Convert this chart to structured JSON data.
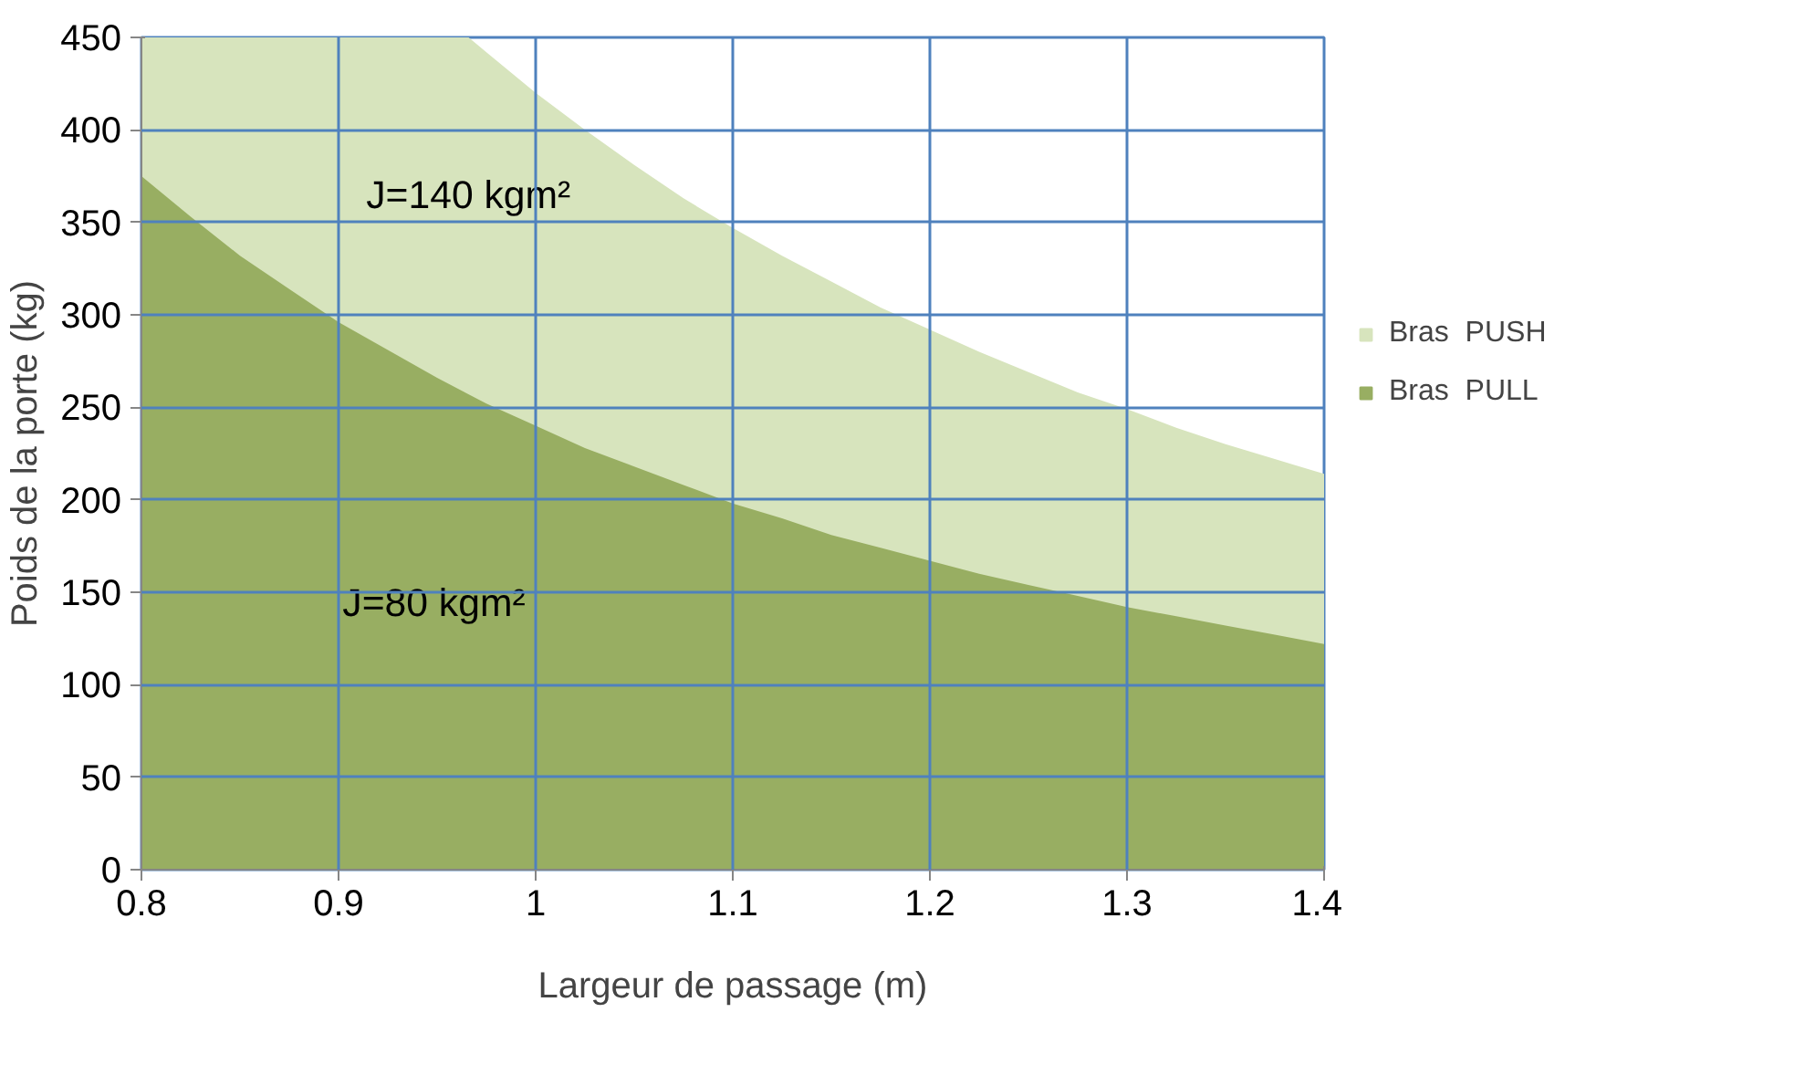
{
  "chart_data": {
    "type": "area",
    "xlabel": "Largeur de passage (m)",
    "ylabel": "Poids de la porte (kg)",
    "xlim": [
      0.8,
      1.4
    ],
    "xticks": [
      0.8,
      0.9,
      1,
      1.1,
      1.2,
      1.3,
      1.4
    ],
    "ylim": [
      0,
      450
    ],
    "yticks": [
      0,
      50,
      100,
      150,
      200,
      250,
      300,
      350,
      400,
      450
    ],
    "grid": true,
    "legend": "right",
    "series": [
      {
        "name": "Bras  PUSH",
        "color": "#d7e4bd",
        "x": [
          0.8,
          0.966,
          0.975,
          1.0,
          1.025,
          1.05,
          1.075,
          1.1,
          1.125,
          1.15,
          1.175,
          1.2,
          1.225,
          1.25,
          1.275,
          1.3,
          1.325,
          1.35,
          1.375,
          1.4
        ],
        "values": [
          450,
          450,
          442,
          420,
          400,
          381,
          363,
          347,
          332,
          318,
          304,
          292,
          280,
          269,
          258,
          249,
          239,
          230,
          222,
          214
        ]
      },
      {
        "name": "Bras  PULL",
        "color": "#98ae62",
        "x": [
          0.8,
          0.825,
          0.85,
          0.875,
          0.9,
          0.925,
          0.95,
          0.975,
          1.0,
          1.025,
          1.05,
          1.075,
          1.1,
          1.125,
          1.15,
          1.175,
          1.2,
          1.225,
          1.25,
          1.275,
          1.3,
          1.325,
          1.35,
          1.375,
          1.4
        ],
        "values": [
          375,
          353,
          332,
          314,
          296,
          281,
          266,
          252,
          240,
          228,
          218,
          208,
          198,
          190,
          181,
          174,
          167,
          160,
          154,
          148,
          142,
          137,
          132,
          127,
          122
        ]
      }
    ],
    "annotations": [
      "J=140 kgm²",
      "J=80 kgm²"
    ]
  }
}
